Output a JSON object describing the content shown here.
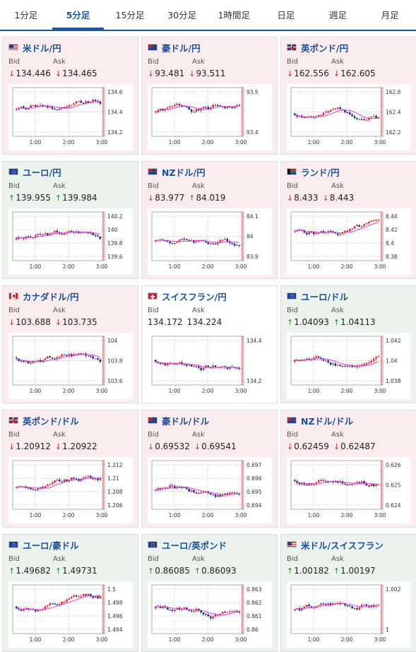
{
  "tabs": [
    {
      "label": "1分足",
      "active": false
    },
    {
      "label": "5分足",
      "active": true
    },
    {
      "label": "15分足",
      "active": false
    },
    {
      "label": "30分足",
      "active": false
    },
    {
      "label": "1時間足",
      "active": false
    },
    {
      "label": "日足",
      "active": false
    },
    {
      "label": "週足",
      "active": false
    },
    {
      "label": "月足",
      "active": false
    }
  ],
  "labels": {
    "bid": "Bid",
    "ask": "Ask"
  },
  "colors": {
    "accent": "#1a57a8",
    "down_bg": "#fbeded",
    "up_bg": "#ebf3ec",
    "candle_up": "#e8283a",
    "candle_down": "#1a2a8c",
    "ma": "#d93fd6",
    "ma_short": "#3ab0e0"
  },
  "cards": [
    {
      "pair": "米ドル/円",
      "flag": "us-jp-flag-icon",
      "state": "down",
      "bid": "134.446",
      "bid_dir": "down",
      "ask": "134.465",
      "ask_dir": "down",
      "chart": {
        "yticks": [
          "134.6",
          "134.4",
          "134.2"
        ],
        "xticks": [
          "1:00",
          "2:00",
          "3:00"
        ]
      }
    },
    {
      "pair": "豪ドル/円",
      "flag": "au-jp-flag-icon",
      "state": "down",
      "bid": "93.481",
      "bid_dir": "down",
      "ask": "93.511",
      "ask_dir": "down",
      "chart": {
        "yticks": [
          "93.5",
          "93.4"
        ],
        "xticks": [
          "1:00",
          "2:00",
          "3:00"
        ]
      }
    },
    {
      "pair": "英ポンド/円",
      "flag": "gb-jp-flag-icon",
      "state": "down",
      "bid": "162.556",
      "bid_dir": "down",
      "ask": "162.605",
      "ask_dir": "down",
      "chart": {
        "yticks": [
          "162.6",
          "162.4",
          "162.2"
        ],
        "xticks": [
          "1:00",
          "2:00",
          "3:00"
        ]
      }
    },
    {
      "pair": "ユーロ/円",
      "flag": "eu-jp-flag-icon",
      "state": "up",
      "bid": "139.955",
      "bid_dir": "up",
      "ask": "139.984",
      "ask_dir": "up",
      "chart": {
        "yticks": [
          "140.2",
          "140",
          "139.8",
          "139.6"
        ],
        "xticks": [
          "1:00",
          "2:00",
          "3:00"
        ]
      }
    },
    {
      "pair": "NZドル/円",
      "flag": "nz-jp-flag-icon",
      "state": "down",
      "bid": "83.977",
      "bid_dir": "down",
      "ask": "84.019",
      "ask_dir": "up",
      "chart": {
        "yticks": [
          "84.1",
          "84",
          "83.9"
        ],
        "xticks": [
          "1:00",
          "2:00",
          "3:00"
        ]
      }
    },
    {
      "pair": "ランド/円",
      "flag": "za-jp-flag-icon",
      "state": "down",
      "bid": "8.433",
      "bid_dir": "down",
      "ask": "8.443",
      "ask_dir": "down",
      "chart": {
        "yticks": [
          "8.44",
          "8.42",
          "8.4",
          "8.38"
        ],
        "xticks": [
          "1:00",
          "2:00",
          "3:00"
        ]
      }
    },
    {
      "pair": "カナダドル/円",
      "flag": "ca-jp-flag-icon",
      "state": "down",
      "bid": "103.688",
      "bid_dir": "down",
      "ask": "103.735",
      "ask_dir": "down",
      "chart": {
        "yticks": [
          "104",
          "103.8",
          "103.6"
        ],
        "xticks": [
          "1:00",
          "2:00",
          "3:00"
        ]
      }
    },
    {
      "pair": "スイスフラン/円",
      "flag": "ch-jp-flag-icon",
      "state": "flat",
      "bid": "134.172",
      "bid_dir": "",
      "ask": "134.224",
      "ask_dir": "",
      "chart": {
        "yticks": [
          "134.4",
          "134.2"
        ],
        "xticks": [
          "1:00",
          "2:00",
          "3:00"
        ]
      }
    },
    {
      "pair": "ユーロ/ドル",
      "flag": "eu-us-flag-icon",
      "state": "up",
      "bid": "1.04093",
      "bid_dir": "up",
      "ask": "1.04113",
      "ask_dir": "up",
      "chart": {
        "yticks": [
          "1.042",
          "1.04",
          "1.038"
        ],
        "xticks": [
          "1:00",
          "2:00",
          "3:00"
        ]
      }
    },
    {
      "pair": "英ポンド/ドル",
      "flag": "gb-us-flag-icon",
      "state": "down",
      "bid": "1.20912",
      "bid_dir": "down",
      "ask": "1.20922",
      "ask_dir": "down",
      "chart": {
        "yticks": [
          "1.212",
          "1.21",
          "1.208",
          "1.206"
        ],
        "xticks": [
          "1:00",
          "2:00",
          "3:00"
        ]
      }
    },
    {
      "pair": "豪ドル/ドル",
      "flag": "au-us-flag-icon",
      "state": "down",
      "bid": "0.69532",
      "bid_dir": "down",
      "ask": "0.69541",
      "ask_dir": "down",
      "chart": {
        "yticks": [
          "0.697",
          "0.696",
          "0.695",
          "0.694"
        ],
        "xticks": [
          "1:00",
          "2:00",
          "3:00"
        ]
      }
    },
    {
      "pair": "NZドル/ドル",
      "flag": "nz-us-flag-icon",
      "state": "down",
      "bid": "0.62459",
      "bid_dir": "down",
      "ask": "0.62487",
      "ask_dir": "down",
      "chart": {
        "yticks": [
          "0.626",
          "0.625",
          "0.624"
        ],
        "xticks": [
          "1:00",
          "2:00",
          "3:00"
        ]
      }
    },
    {
      "pair": "ユーロ/豪ドル",
      "flag": "eu-au-flag-icon",
      "state": "up",
      "bid": "1.49682",
      "bid_dir": "up",
      "ask": "1.49731",
      "ask_dir": "up",
      "chart": {
        "yticks": [
          "1.5",
          "1.498",
          "1.496",
          "1.494"
        ],
        "xticks": [
          "1:00",
          "2:00",
          "3:00"
        ]
      }
    },
    {
      "pair": "ユーロ/英ポンド",
      "flag": "eu-gb-flag-icon",
      "state": "up",
      "bid": "0.86085",
      "bid_dir": "up",
      "ask": "0.86093",
      "ask_dir": "up",
      "chart": {
        "yticks": [
          "0.863",
          "0.862",
          "0.861",
          "0.86"
        ],
        "xticks": [
          "1:00",
          "2:00",
          "3:00"
        ]
      }
    },
    {
      "pair": "米ドル/スイスフラン",
      "flag": "us-ch-flag-icon",
      "state": "up",
      "bid": "1.00182",
      "bid_dir": "up",
      "ask": "1.00197",
      "ask_dir": "up",
      "chart": {
        "yticks": [
          "1.002",
          "1"
        ],
        "xticks": [
          "1:00",
          "2:00",
          "3:00"
        ]
      }
    }
  ]
}
